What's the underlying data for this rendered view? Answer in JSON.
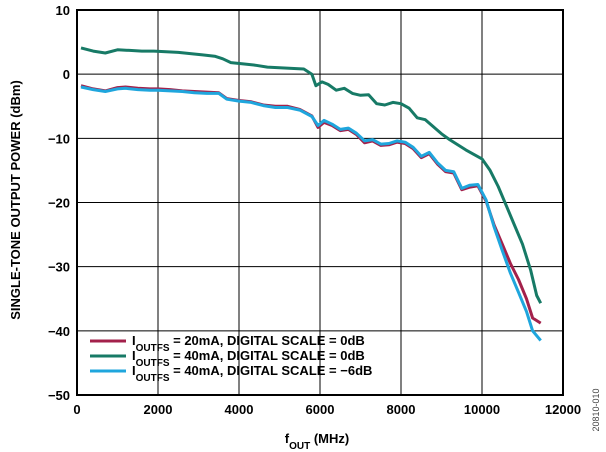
{
  "chart_data": {
    "type": "line",
    "xlabel": {
      "main": "f",
      "sub": "OUT",
      "unit": " (MHz)"
    },
    "ylabel": "SINGLE-TONE OUTPUT POWER (dBm)",
    "xlim": [
      0,
      12000
    ],
    "ylim": [
      -50,
      10
    ],
    "xticks": [
      0,
      2000,
      4000,
      6000,
      8000,
      10000,
      12000
    ],
    "yticks": [
      -50,
      -40,
      -30,
      -20,
      -10,
      0,
      10
    ],
    "grid": true,
    "legend_position": "bottom-left",
    "series": [
      {
        "name": "I_OUTFS = 20mA, DIGITAL SCALE = 0dB",
        "legend": {
          "main": "I",
          "sub": "OUTFS",
          "rest": " = 20mA, DIGITAL SCALE = 0dB"
        },
        "color": "#a3214b",
        "points": [
          [
            100,
            -1.8
          ],
          [
            400,
            -2.3
          ],
          [
            700,
            -2.6
          ],
          [
            1000,
            -2.1
          ],
          [
            1200,
            -2.0
          ],
          [
            1500,
            -2.2
          ],
          [
            1800,
            -2.3
          ],
          [
            2000,
            -2.3
          ],
          [
            2300,
            -2.4
          ],
          [
            2600,
            -2.6
          ],
          [
            2900,
            -2.7
          ],
          [
            3200,
            -2.8
          ],
          [
            3500,
            -2.9
          ],
          [
            3700,
            -3.8
          ],
          [
            4000,
            -4.1
          ],
          [
            4300,
            -4.3
          ],
          [
            4600,
            -4.8
          ],
          [
            4900,
            -5.0
          ],
          [
            5200,
            -5.0
          ],
          [
            5500,
            -5.5
          ],
          [
            5800,
            -6.5
          ],
          [
            5950,
            -8.3
          ],
          [
            6100,
            -7.5
          ],
          [
            6300,
            -8.0
          ],
          [
            6500,
            -8.8
          ],
          [
            6700,
            -8.6
          ],
          [
            6900,
            -9.4
          ],
          [
            7100,
            -10.7
          ],
          [
            7300,
            -10.4
          ],
          [
            7500,
            -11.1
          ],
          [
            7700,
            -11.0
          ],
          [
            7900,
            -10.6
          ],
          [
            8100,
            -10.8
          ],
          [
            8300,
            -11.6
          ],
          [
            8500,
            -13.0
          ],
          [
            8700,
            -12.4
          ],
          [
            8900,
            -14.0
          ],
          [
            9100,
            -15.2
          ],
          [
            9300,
            -15.4
          ],
          [
            9500,
            -18.0
          ],
          [
            9700,
            -17.6
          ],
          [
            9900,
            -17.4
          ],
          [
            10100,
            -19.8
          ],
          [
            10300,
            -23.5
          ],
          [
            10500,
            -26.5
          ],
          [
            10700,
            -29.5
          ],
          [
            10900,
            -32.0
          ],
          [
            11100,
            -35.0
          ],
          [
            11250,
            -38.0
          ],
          [
            11450,
            -38.8
          ]
        ]
      },
      {
        "name": "I_OUTFS = 40mA, DIGITAL SCALE = 0dB",
        "legend": {
          "main": "I",
          "sub": "OUTFS",
          "rest": " = 40mA, DIGITAL SCALE = 0dB"
        },
        "color": "#177a66",
        "points": [
          [
            100,
            4.1
          ],
          [
            400,
            3.6
          ],
          [
            700,
            3.3
          ],
          [
            1000,
            3.8
          ],
          [
            1300,
            3.7
          ],
          [
            1600,
            3.6
          ],
          [
            1900,
            3.6
          ],
          [
            2200,
            3.5
          ],
          [
            2500,
            3.4
          ],
          [
            2800,
            3.2
          ],
          [
            3100,
            3.0
          ],
          [
            3400,
            2.8
          ],
          [
            3600,
            2.4
          ],
          [
            3800,
            1.8
          ],
          [
            4100,
            1.6
          ],
          [
            4400,
            1.4
          ],
          [
            4700,
            1.1
          ],
          [
            5000,
            1.0
          ],
          [
            5300,
            0.9
          ],
          [
            5600,
            0.8
          ],
          [
            5800,
            0.0
          ],
          [
            5900,
            -1.8
          ],
          [
            6050,
            -1.2
          ],
          [
            6200,
            -1.6
          ],
          [
            6400,
            -2.5
          ],
          [
            6600,
            -2.2
          ],
          [
            6800,
            -3.0
          ],
          [
            7000,
            -3.3
          ],
          [
            7200,
            -3.2
          ],
          [
            7400,
            -4.6
          ],
          [
            7600,
            -4.8
          ],
          [
            7800,
            -4.4
          ],
          [
            8000,
            -4.6
          ],
          [
            8200,
            -5.3
          ],
          [
            8400,
            -6.8
          ],
          [
            8600,
            -7.1
          ],
          [
            8800,
            -8.2
          ],
          [
            9000,
            -9.3
          ],
          [
            9200,
            -10.2
          ],
          [
            9400,
            -11.0
          ],
          [
            9600,
            -11.8
          ],
          [
            9800,
            -12.5
          ],
          [
            10000,
            -13.2
          ],
          [
            10200,
            -15.0
          ],
          [
            10400,
            -17.5
          ],
          [
            10600,
            -20.5
          ],
          [
            10800,
            -23.5
          ],
          [
            11000,
            -26.5
          ],
          [
            11200,
            -30.5
          ],
          [
            11350,
            -34.5
          ],
          [
            11450,
            -35.7
          ]
        ]
      },
      {
        "name": "I_OUTFS = 40mA, DIGITAL SCALE = −6dB",
        "legend": {
          "main": "I",
          "sub": "OUTFS",
          "rest": " = 40mA, DIGITAL SCALE = −6dB"
        },
        "color": "#1fa6dd",
        "points": [
          [
            100,
            -2.0
          ],
          [
            400,
            -2.4
          ],
          [
            700,
            -2.7
          ],
          [
            1000,
            -2.3
          ],
          [
            1200,
            -2.2
          ],
          [
            1500,
            -2.4
          ],
          [
            1800,
            -2.5
          ],
          [
            2000,
            -2.5
          ],
          [
            2300,
            -2.6
          ],
          [
            2600,
            -2.7
          ],
          [
            2900,
            -2.9
          ],
          [
            3200,
            -3.0
          ],
          [
            3500,
            -3.0
          ],
          [
            3700,
            -3.9
          ],
          [
            4000,
            -4.2
          ],
          [
            4300,
            -4.4
          ],
          [
            4600,
            -4.9
          ],
          [
            4900,
            -5.2
          ],
          [
            5200,
            -5.2
          ],
          [
            5500,
            -5.6
          ],
          [
            5800,
            -6.6
          ],
          [
            5950,
            -8.0
          ],
          [
            6100,
            -7.2
          ],
          [
            6300,
            -7.8
          ],
          [
            6500,
            -8.6
          ],
          [
            6700,
            -8.4
          ],
          [
            6900,
            -9.2
          ],
          [
            7100,
            -10.4
          ],
          [
            7300,
            -10.2
          ],
          [
            7500,
            -10.9
          ],
          [
            7700,
            -10.8
          ],
          [
            7900,
            -10.4
          ],
          [
            8100,
            -10.6
          ],
          [
            8300,
            -11.4
          ],
          [
            8500,
            -12.8
          ],
          [
            8700,
            -12.2
          ],
          [
            8900,
            -13.8
          ],
          [
            9100,
            -15.0
          ],
          [
            9300,
            -15.2
          ],
          [
            9500,
            -17.8
          ],
          [
            9700,
            -17.3
          ],
          [
            9900,
            -17.2
          ],
          [
            10100,
            -19.6
          ],
          [
            10300,
            -23.8
          ],
          [
            10500,
            -27.5
          ],
          [
            10700,
            -31.0
          ],
          [
            10900,
            -34.0
          ],
          [
            11100,
            -37.0
          ],
          [
            11250,
            -40.0
          ],
          [
            11450,
            -41.5
          ]
        ]
      }
    ]
  },
  "figure_id": "20810-010"
}
